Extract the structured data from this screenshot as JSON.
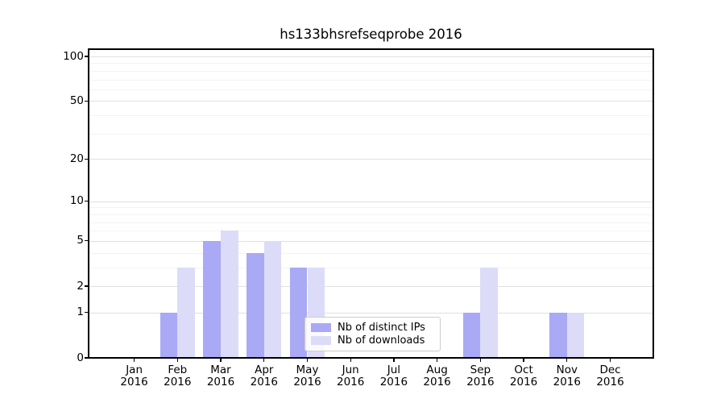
{
  "chart_data": {
    "type": "bar",
    "title": "hs133bhsrefseqprobe 2016",
    "categories": [
      "Jan",
      "Feb",
      "Mar",
      "Apr",
      "May",
      "Jun",
      "Jul",
      "Aug",
      "Sep",
      "Oct",
      "Nov",
      "Dec"
    ],
    "category_year": "2016",
    "series": [
      {
        "name": "Nb of distinct IPs",
        "color": "#a9a9f5",
        "values": [
          0,
          1,
          5,
          4,
          3,
          0,
          0,
          0,
          1,
          0,
          1,
          0
        ]
      },
      {
        "name": "Nb of downloads",
        "color": "#dcdcf9",
        "values": [
          0,
          3,
          6,
          5,
          3,
          0,
          0,
          0,
          3,
          0,
          1,
          0
        ]
      }
    ],
    "yscale": "log1p",
    "ylim": [
      0,
      113
    ],
    "yticks": [
      0,
      1,
      2,
      5,
      10,
      20,
      50,
      100
    ],
    "minor_yticks": [
      3,
      4,
      6,
      7,
      8,
      9,
      30,
      40,
      60,
      70,
      80,
      90
    ],
    "grid": true,
    "legend_position": "lower-center"
  },
  "colors": {
    "background": "#ffffff",
    "spine": "#000000",
    "major_grid": "#e0e0e0",
    "minor_grid": "#f3f3f3",
    "legend_border": "#cccccc",
    "text": "#000000"
  }
}
